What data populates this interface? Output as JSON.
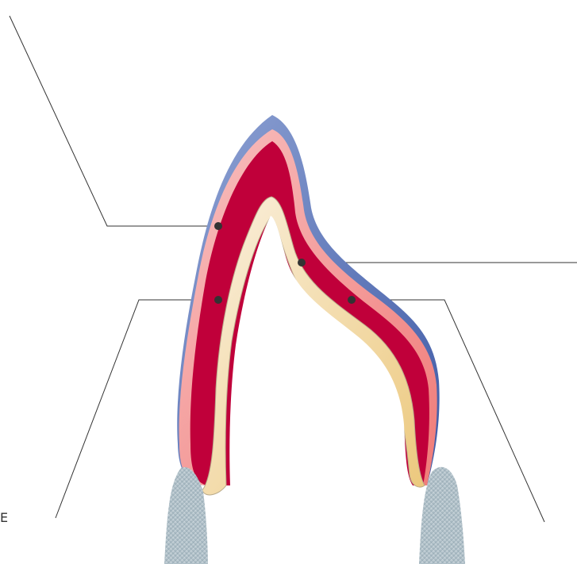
{
  "diagram": {
    "partial_label_left": "E",
    "colors": {
      "background": "#ffffff",
      "outer_layer_blue": "#4f68b0",
      "outer_layer_light_blue": "#8fa3d4",
      "pink_layer": "#f3a8a8",
      "salmon_layer": "#f08a86",
      "core_red": "#c0003a",
      "inner_cream": "#f7ead0",
      "inner_tan": "#efd398",
      "leader_line": "#333333",
      "marker_dot": "#333333",
      "tooth_gray": "#aebfc8"
    },
    "markers": [
      "outer-layer-marker",
      "core-layer-marker",
      "inner-layer-marker",
      "right-outer-marker"
    ]
  }
}
